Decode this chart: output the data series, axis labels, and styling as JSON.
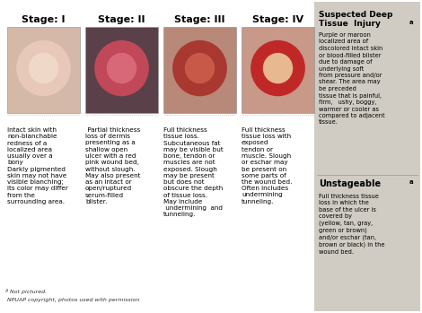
{
  "background_color": "#ffffff",
  "stage_bg": "#f5f5f5",
  "stages": [
    {
      "title": "Stage: I",
      "img_bg": "#d4b8a8",
      "img_center": "#e8c8b8",
      "img_inner": "#f0d8c8",
      "description": "Intact skin with\nnon-blanchable\nredness of a\nlocalized area\nusually over a\nbony\nDarkly pigmented\nskin may not have\nvisible blanching;\nits color may differ\nfrom the\nsurrounding area."
    },
    {
      "title": "Stage: II",
      "img_bg": "#5a4048",
      "img_center": "#c04858",
      "img_inner": "#d86878",
      "description": " Partial thickness\nloss of dermis\npresenting as a\nshallow open\nulcer with a red\npink wound bed,\nwithout slough.\nMay also present\nas an intact or\nopen/ruptured\nserum-filled\nblister."
    },
    {
      "title": "Stage: III",
      "img_bg": "#b88878",
      "img_center": "#a83830",
      "img_inner": "#c85848",
      "description": "Full thickness\ntissue loss.\nSubcutaneous fat\nmay be visible but\nbone, tendon or\nmuscles are not\nexposed. Slough\nmay be present\nbut does not\nobscure the depth\nof tissue loss.\nMay include\n undermining  and\ntunneling."
    },
    {
      "title": "Stage: IV",
      "img_bg": "#c89888",
      "img_center": "#c02828",
      "img_inner": "#e8b890",
      "description": "Full thickness\ntissue loss with\nexposed\ntendon or\nmuscle. Slough\nor eschar may\nbe present on\nsome parts of\nthe wound bed.\nOften includes\nundermining\ntunneling."
    }
  ],
  "right_panel_bg": "#d0ccc4",
  "suspected_line1": "Suspected Deep",
  "suspected_line2": "Tissue  Injury",
  "suspected_sup": "a",
  "suspected_text": "Purple or maroon\nlocalized area of\ndiscolored intact skin\nor blood-filled blister\ndue to damage of\nunderlying soft\nfrom pressure and/or\nshear. The area may\nbe preceded\ntissue that is painful,\nfirm,   ushy, boggy,\nwarmer or cooler as\ncompared to adjacent\ntissue.",
  "unstageable_title": "Unstageable",
  "unstageable_sup": "a",
  "unstageable_text": "Full thickness tissue\nloss in which the\nbase of the ulcer is\ncovered by\n(yellow, tan, gray,\ngreen or brown)\nand/or eschar (tan,\nbrown or black) in the\nwound bed.",
  "footnote_line1": "ª Not pictured.",
  "footnote_line2": " NPUAP copyright, photos used with permission"
}
